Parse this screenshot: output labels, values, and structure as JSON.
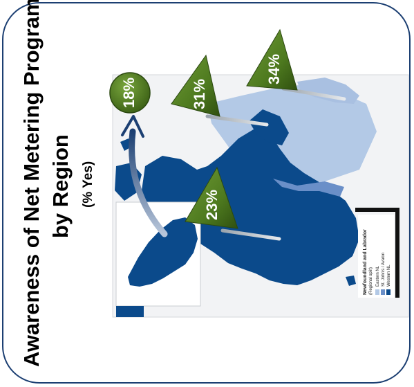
{
  "title": {
    "line1": "Awareness of Net Metering Program",
    "line2": "by Region",
    "line3": "(% Yes)"
  },
  "legend": {
    "title": "Newfoundland and Labrador",
    "subtitle": "(Regional split)",
    "items": [
      {
        "label": "Eastern NL",
        "color": "#b3c9e6"
      },
      {
        "label": "St. John's / Avalon",
        "color": "#6a8fc8"
      },
      {
        "label": "Western NL",
        "color": "#0b4a8b"
      }
    ]
  },
  "markers": [
    {
      "label": "18%",
      "shape": "circle"
    },
    {
      "label": "31%",
      "shape": "triangle"
    },
    {
      "label": "34%",
      "shape": "triangle"
    },
    {
      "label": "23%",
      "shape": "triangle"
    }
  ],
  "colors": {
    "frame": "#1c3f72",
    "marker_green": "#4e7a1f",
    "map_dark": "#0b4a8b",
    "map_light": "#b3c9e6",
    "map_mid": "#6a8fc8"
  }
}
